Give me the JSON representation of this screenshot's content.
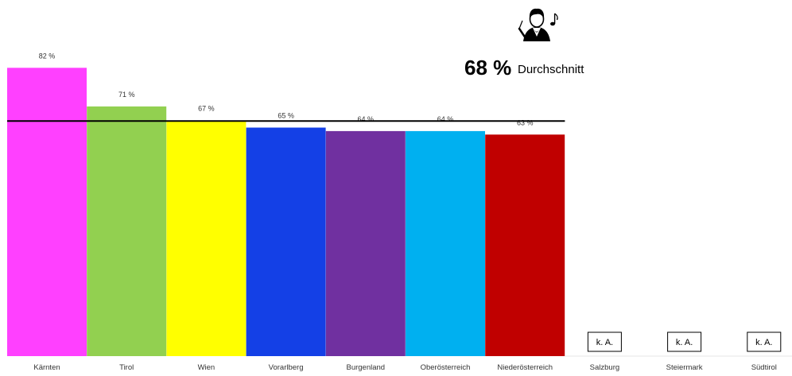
{
  "chart_data": {
    "type": "bar",
    "categories": [
      "Kärnten",
      "Tirol",
      "Wien",
      "Vorarlberg",
      "Burgenland",
      "Oberösterreich",
      "Niederösterreich",
      "Salzburg",
      "Steiermark",
      "Südtirol"
    ],
    "values": [
      82,
      71,
      67,
      65,
      64,
      64,
      63,
      null,
      null,
      null
    ],
    "data_labels": [
      "82 %",
      "71 %",
      "67  %",
      "65 %",
      "64 %",
      "64 %",
      "63 %",
      "k. A.",
      "k. A.",
      "k. A."
    ],
    "colors": [
      "#ff40ff",
      "#92d050",
      "#ffff00",
      "#1440e6",
      "#7030a0",
      "#00b0f0",
      "#c00000",
      null,
      null,
      null
    ],
    "ylim": [
      0,
      85
    ],
    "average": {
      "value": 68,
      "value_label": "68 %",
      "label": "Durchschnitt",
      "icon": "conductor-icon"
    },
    "grid": false,
    "legend": "none",
    "title": "",
    "xlabel": "",
    "ylabel": ""
  }
}
